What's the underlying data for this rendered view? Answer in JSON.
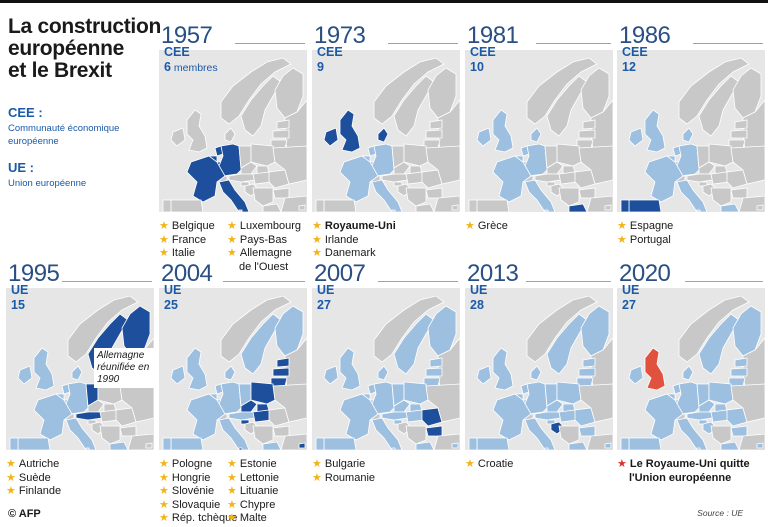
{
  "title": [
    "La construction",
    "européenne",
    "et le Brexit"
  ],
  "legend": [
    {
      "abbr": "CEE :",
      "definition": "Communauté économique européenne"
    },
    {
      "abbr": "UE :",
      "definition": "Union européenne"
    }
  ],
  "colors": {
    "member": "#9dbfe0",
    "new_member": "#1d4f9c",
    "non_member": "#c8c8c8",
    "sea": "#e6e6e6",
    "leaving": "#e0523d",
    "star": "#f2b418",
    "star_leaving": "#d6362c"
  },
  "panels": [
    {
      "year": "1957",
      "org": "CEE",
      "count": "6",
      "count_suffix": "membres",
      "new": [
        "BE",
        "FR",
        "IT",
        "LU",
        "NL",
        "DE"
      ],
      "members": [],
      "columns": [
        [
          "Belgique",
          "France",
          "Italie"
        ],
        [
          "Luxembourg",
          "Pays-Bas",
          "Allemagne\nde l'Ouest"
        ]
      ]
    },
    {
      "year": "1973",
      "org": "CEE",
      "count": "9",
      "new": [
        "UK",
        "IE",
        "DK"
      ],
      "members": [
        "BE",
        "FR",
        "IT",
        "LU",
        "NL",
        "DE"
      ],
      "items": [
        {
          "text": "Royaume-Uni",
          "bold": true
        },
        {
          "text": "Irlande"
        },
        {
          "text": "Danemark"
        }
      ]
    },
    {
      "year": "1981",
      "org": "CEE",
      "count": "10",
      "new": [
        "GR"
      ],
      "members": [
        "BE",
        "FR",
        "IT",
        "LU",
        "NL",
        "DE",
        "UK",
        "IE",
        "DK"
      ],
      "items": [
        {
          "text": "Grèce"
        }
      ]
    },
    {
      "year": "1986",
      "org": "CEE",
      "count": "12",
      "new": [
        "ES",
        "PT"
      ],
      "members": [
        "BE",
        "FR",
        "IT",
        "LU",
        "NL",
        "DE",
        "UK",
        "IE",
        "DK",
        "GR"
      ],
      "items": [
        {
          "text": "Espagne"
        },
        {
          "text": "Portugal"
        }
      ]
    },
    {
      "year": "1995",
      "org": "UE",
      "count": "15",
      "new": [
        "AT",
        "SE",
        "FI",
        "DE_E"
      ],
      "members": [
        "BE",
        "FR",
        "IT",
        "LU",
        "NL",
        "DE",
        "UK",
        "IE",
        "DK",
        "GR",
        "ES",
        "PT"
      ],
      "annotation": "Allemagne réunifiée en 1990",
      "items": [
        {
          "text": "Autriche"
        },
        {
          "text": "Suède"
        },
        {
          "text": "Finlande"
        }
      ]
    },
    {
      "year": "2004",
      "org": "UE",
      "count": "25",
      "new": [
        "PL",
        "HU",
        "SI",
        "SK",
        "CZ",
        "EE",
        "LV",
        "LT",
        "CY",
        "MT"
      ],
      "members": [
        "BE",
        "FR",
        "IT",
        "LU",
        "NL",
        "DE",
        "DE_E",
        "UK",
        "IE",
        "DK",
        "GR",
        "ES",
        "PT",
        "AT",
        "SE",
        "FI"
      ],
      "columns": [
        [
          "Pologne",
          "Hongrie",
          "Slovénie",
          "Slovaquie",
          "Rép. tchèque"
        ],
        [
          "Estonie",
          "Lettonie",
          "Lituanie",
          "Chypre",
          "Malte"
        ]
      ]
    },
    {
      "year": "2007",
      "org": "UE",
      "count": "27",
      "new": [
        "BG",
        "RO"
      ],
      "members": [
        "BE",
        "FR",
        "IT",
        "LU",
        "NL",
        "DE",
        "DE_E",
        "UK",
        "IE",
        "DK",
        "GR",
        "ES",
        "PT",
        "AT",
        "SE",
        "FI",
        "PL",
        "HU",
        "SI",
        "SK",
        "CZ",
        "EE",
        "LV",
        "LT",
        "CY",
        "MT"
      ],
      "items": [
        {
          "text": "Bulgarie"
        },
        {
          "text": "Roumanie"
        }
      ]
    },
    {
      "year": "2013",
      "org": "UE",
      "count": "28",
      "new": [
        "HR"
      ],
      "members": [
        "BE",
        "FR",
        "IT",
        "LU",
        "NL",
        "DE",
        "DE_E",
        "UK",
        "IE",
        "DK",
        "GR",
        "ES",
        "PT",
        "AT",
        "SE",
        "FI",
        "PL",
        "HU",
        "SI",
        "SK",
        "CZ",
        "EE",
        "LV",
        "LT",
        "CY",
        "MT",
        "BG",
        "RO"
      ],
      "items": [
        {
          "text": "Croatie"
        }
      ]
    },
    {
      "year": "2020",
      "org": "UE",
      "count": "27",
      "leaving": [
        "UK"
      ],
      "new": [],
      "members": [
        "BE",
        "FR",
        "IT",
        "LU",
        "NL",
        "DE",
        "DE_E",
        "IE",
        "DK",
        "GR",
        "ES",
        "PT",
        "AT",
        "SE",
        "FI",
        "PL",
        "HU",
        "SI",
        "SK",
        "CZ",
        "EE",
        "LV",
        "LT",
        "CY",
        "MT",
        "BG",
        "RO",
        "HR"
      ],
      "items": [
        {
          "text": "Le Royaume-Uni quitte\nl'Union européenne",
          "bold": true,
          "red": true
        }
      ]
    }
  ],
  "footer": {
    "logo": "© AFP",
    "source": "Source : UE"
  }
}
